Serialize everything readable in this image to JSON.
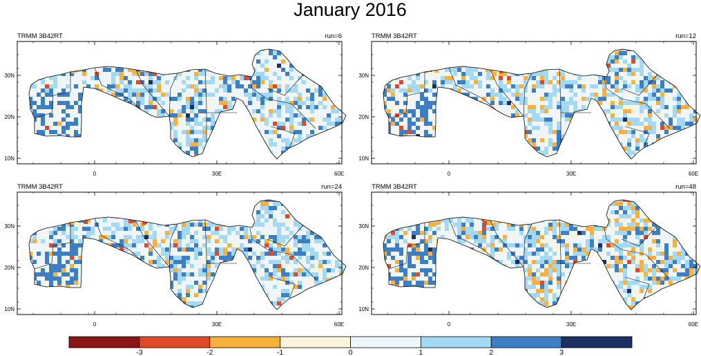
{
  "title": "January 2016",
  "colors": {
    "scale": [
      "#8b1414",
      "#e04a28",
      "#f9b13e",
      "#fbf4dc",
      "#eef6fb",
      "#a4d9f4",
      "#3d7fc5",
      "#1b2f63"
    ],
    "frame": "#000000",
    "land_base": "#eef6fb"
  },
  "axes": {
    "x_ticks": [
      "0",
      "30E",
      "60E"
    ],
    "y_ticks": [
      "30N",
      "20N",
      "10N"
    ]
  },
  "panels": [
    {
      "source": "TRMM 3B42RT",
      "run": "run=6"
    },
    {
      "source": "TRMM 3B42RT",
      "run": "run=12"
    },
    {
      "source": "TRMM 3B42RT",
      "run": "run=24"
    },
    {
      "source": "TRMM 3B42RT",
      "run": "run=48"
    }
  ],
  "colorbar": {
    "labels": [
      "-3",
      "-2",
      "-1",
      "0",
      "1",
      "2",
      "3"
    ]
  }
}
